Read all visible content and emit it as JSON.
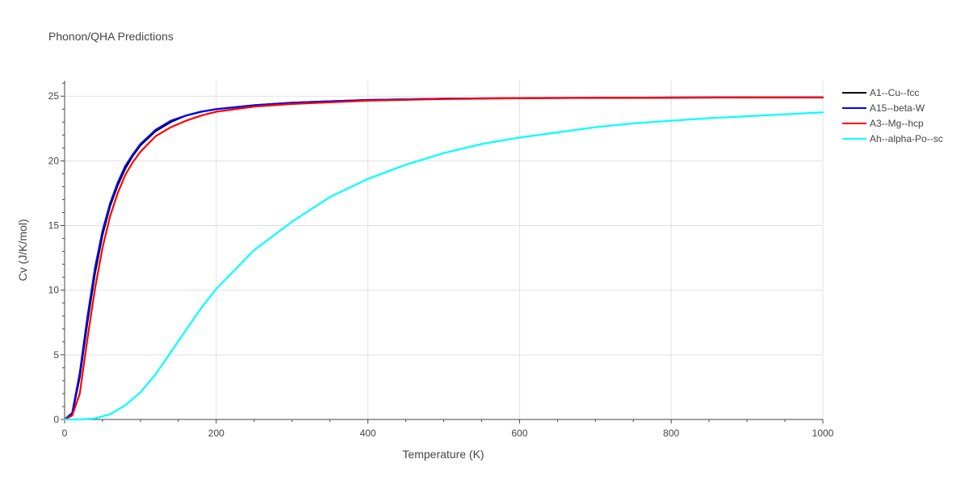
{
  "chart_data": {
    "type": "line",
    "title": "Phonon/QHA Predictions",
    "xlabel": "Temperature (K)",
    "ylabel": "Cv (J/K/mol)",
    "xlim": [
      0,
      1000
    ],
    "ylim": [
      0,
      26.2
    ],
    "xticks": [
      0,
      200,
      400,
      600,
      800,
      1000
    ],
    "yticks": [
      0,
      5,
      10,
      15,
      20,
      25
    ],
    "grid": true,
    "legend_position": "right",
    "series": [
      {
        "name": "A1--Cu--fcc",
        "color": "#000000",
        "x": [
          0,
          10,
          20,
          30,
          40,
          50,
          60,
          70,
          80,
          90,
          100,
          120,
          140,
          160,
          180,
          200,
          250,
          300,
          400,
          500,
          600,
          700,
          800,
          900,
          1000
        ],
        "y": [
          0,
          0.4,
          3.3,
          7.5,
          11.3,
          14.3,
          16.5,
          18.1,
          19.4,
          20.4,
          21.2,
          22.3,
          23.0,
          23.5,
          23.8,
          24.0,
          24.3,
          24.5,
          24.7,
          24.8,
          24.85,
          24.87,
          24.89,
          24.9,
          24.9
        ]
      },
      {
        "name": "A15--beta-W",
        "color": "#0000ff",
        "x": [
          0,
          10,
          20,
          30,
          40,
          50,
          60,
          70,
          80,
          90,
          100,
          120,
          140,
          160,
          180,
          200,
          250,
          300,
          400,
          500,
          600,
          700,
          800,
          900,
          1000
        ],
        "y": [
          0,
          0.5,
          3.6,
          7.9,
          11.7,
          14.6,
          16.7,
          18.3,
          19.6,
          20.5,
          21.3,
          22.4,
          23.1,
          23.5,
          23.8,
          24.0,
          24.3,
          24.5,
          24.7,
          24.8,
          24.85,
          24.87,
          24.89,
          24.9,
          24.9
        ]
      },
      {
        "name": "A3--Mg--hcp",
        "color": "#ff0000",
        "x": [
          0,
          10,
          20,
          30,
          40,
          50,
          60,
          70,
          80,
          90,
          100,
          120,
          140,
          160,
          180,
          200,
          250,
          300,
          400,
          500,
          600,
          700,
          800,
          900,
          1000
        ],
        "y": [
          0,
          0.3,
          2.0,
          6.2,
          10.1,
          13.3,
          15.7,
          17.5,
          18.9,
          19.9,
          20.7,
          21.9,
          22.6,
          23.1,
          23.5,
          23.8,
          24.2,
          24.4,
          24.65,
          24.78,
          24.84,
          24.87,
          24.88,
          24.9,
          24.9
        ]
      },
      {
        "name": "Ah--alpha-Po--sc",
        "color": "#00ffff",
        "x": [
          0,
          20,
          40,
          60,
          80,
          100,
          120,
          140,
          160,
          180,
          200,
          250,
          300,
          350,
          400,
          450,
          500,
          550,
          600,
          650,
          700,
          750,
          800,
          850,
          900,
          950,
          1000
        ],
        "y": [
          0,
          0.0,
          0.08,
          0.4,
          1.1,
          2.1,
          3.5,
          5.2,
          6.9,
          8.6,
          10.1,
          13.1,
          15.3,
          17.2,
          18.6,
          19.7,
          20.6,
          21.3,
          21.8,
          22.2,
          22.6,
          22.9,
          23.1,
          23.3,
          23.45,
          23.6,
          23.75
        ]
      }
    ]
  }
}
